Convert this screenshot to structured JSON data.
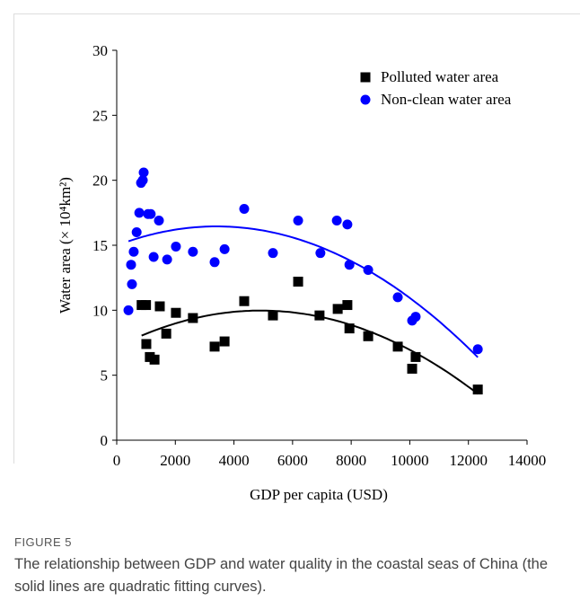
{
  "chart_data": {
    "type": "scatter",
    "xlabel": "GDP per capita (USD)",
    "ylabel": "Water area (× 10⁴km²)",
    "xlim": [
      0,
      14000
    ],
    "xticks": [
      0,
      2000,
      4000,
      6000,
      8000,
      10000,
      12000,
      14000
    ],
    "ylim": [
      0,
      30
    ],
    "yticks": [
      0,
      5,
      10,
      15,
      20,
      25,
      30
    ],
    "legend": "upper right",
    "fit": "quadratic",
    "series": [
      {
        "name": "Polluted water area",
        "color": "#000000",
        "marker": "square",
        "x": [
          850,
          1000,
          1010,
          1130,
          1290,
          1470,
          1690,
          2020,
          2600,
          3340,
          3680,
          4350,
          5330,
          6190,
          6920,
          7540,
          7870,
          7940,
          8580,
          9590,
          10080,
          10200,
          12320
        ],
        "values": [
          10.4,
          10.4,
          7.4,
          6.4,
          6.2,
          10.3,
          8.2,
          9.8,
          9.4,
          7.2,
          7.6,
          10.7,
          9.6,
          12.2,
          9.6,
          10.1,
          10.4,
          8.6,
          8.0,
          7.2,
          5.5,
          6.4,
          3.9
        ]
      },
      {
        "name": "Non-clean water area",
        "color": "#0000ff",
        "marker": "circle",
        "x": [
          400,
          490,
          520,
          580,
          680,
          770,
          830,
          890,
          920,
          1070,
          1160,
          1260,
          1440,
          1720,
          2020,
          2600,
          3340,
          3680,
          4350,
          5330,
          6190,
          6950,
          7510,
          7870,
          7940,
          8580,
          9590,
          10080,
          10200,
          12320
        ],
        "values": [
          10.0,
          13.5,
          12.0,
          14.5,
          16.0,
          17.5,
          19.8,
          20.0,
          20.6,
          17.4,
          17.4,
          14.1,
          16.9,
          13.9,
          14.9,
          14.5,
          13.7,
          14.7,
          17.8,
          14.4,
          16.9,
          14.4,
          16.9,
          16.6,
          13.5,
          13.1,
          11.0,
          9.2,
          9.5,
          7.0
        ]
      }
    ]
  },
  "caption": {
    "label": "FIGURE 5",
    "text": "The relationship between GDP and water quality in the coastal seas of China (the solid lines are quadratic fitting curves)."
  }
}
